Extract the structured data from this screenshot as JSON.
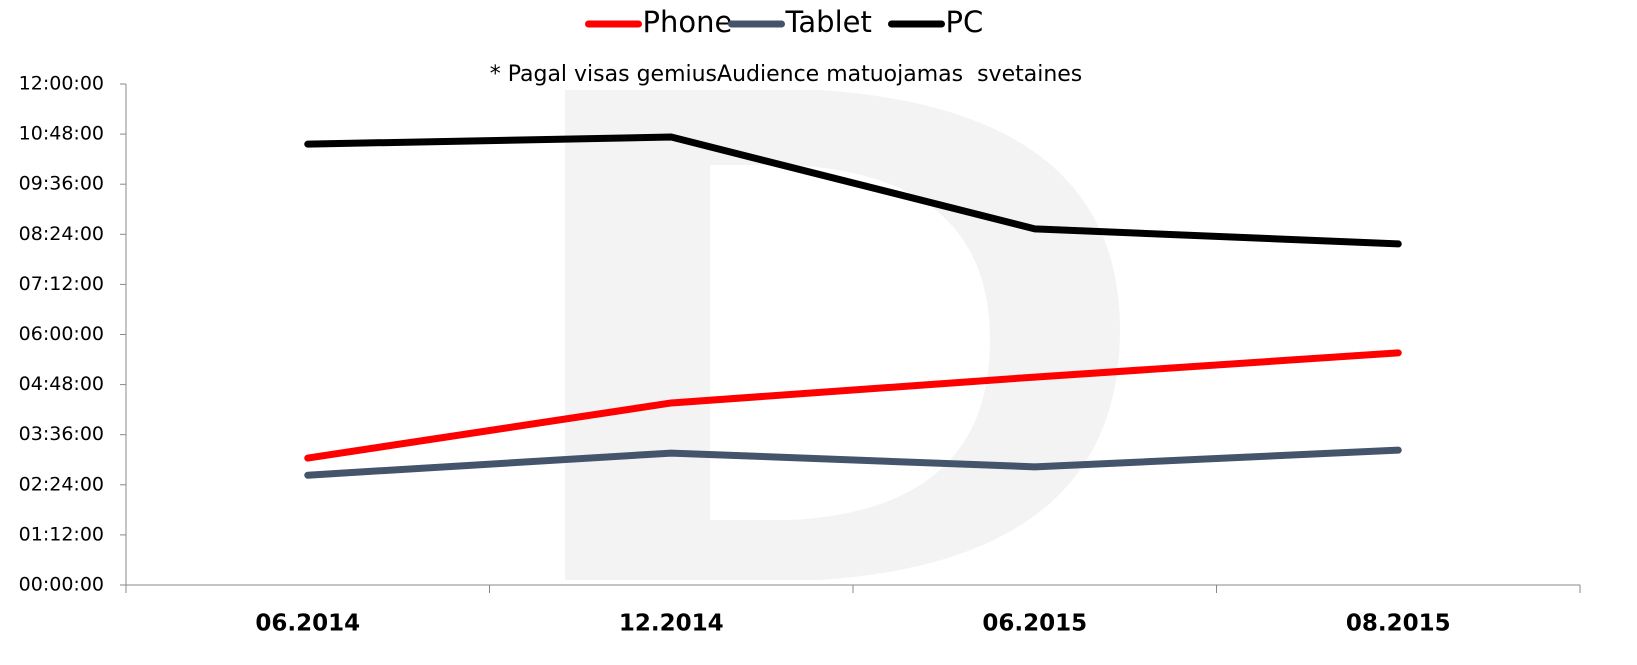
{
  "chart_data": {
    "type": "line",
    "subtitle": "* Pagal visas gemiusAudience matuojamas  svetaines",
    "categories": [
      "06.2014",
      "12.2014",
      "06.2015",
      "08.2015"
    ],
    "series": [
      {
        "name": "Phone",
        "color": "#ff0000",
        "values": [
          3.04,
          4.36,
          4.98,
          5.56
        ]
      },
      {
        "name": "Tablet",
        "color": "#44546a",
        "values": [
          2.63,
          3.16,
          2.83,
          3.23
        ]
      },
      {
        "name": "PC",
        "color": "#000000",
        "values": [
          10.56,
          10.73,
          8.53,
          8.17
        ]
      }
    ],
    "ylim": [
      0,
      12
    ],
    "yticks": [
      {
        "value": 0,
        "label": "00:00:00"
      },
      {
        "value": 1.2,
        "label": "01:12:00"
      },
      {
        "value": 2.4,
        "label": "02:24:00"
      },
      {
        "value": 3.6,
        "label": "03:36:00"
      },
      {
        "value": 4.8,
        "label": "04:48:00"
      },
      {
        "value": 6,
        "label": "06:00:00"
      },
      {
        "value": 7.2,
        "label": "07:12:00"
      },
      {
        "value": 8.4,
        "label": "08:24:00"
      },
      {
        "value": 9.6,
        "label": "09:36:00"
      },
      {
        "value": 10.8,
        "label": "10:48:00"
      },
      {
        "value": 12,
        "label": "12:00:00"
      }
    ],
    "legend": "top"
  }
}
